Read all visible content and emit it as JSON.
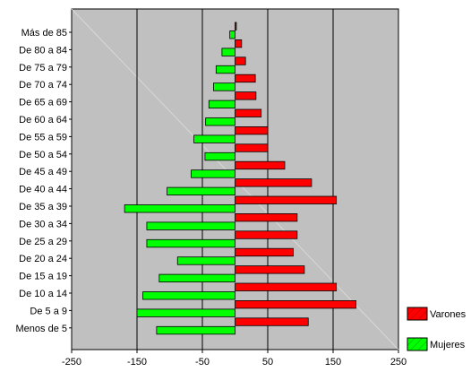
{
  "chart_data": {
    "type": "bar",
    "orientation": "horizontal",
    "categories": [
      "Más de 85",
      "De 80 a 84",
      "De 75 a 79",
      "De 70 a 74",
      "De 65 a 69",
      "De 60 a 64",
      "De 55 a 59",
      "De 50 a 54",
      "De 45 a 49",
      "De 40 a 44",
      "De 35 a 39",
      "De 30 a 34",
      "De 25 a 29",
      "De 20 a 24",
      "De 15 a 19",
      "De 10 a 14",
      "De 5 a 9",
      "Menos de 5"
    ],
    "series": [
      {
        "name": "Varones",
        "color": "#ff0000",
        "values": [
          2,
          10,
          16,
          31,
          32,
          40,
          50,
          50,
          76,
          117,
          155,
          95,
          95,
          89,
          106,
          155,
          185,
          112
        ]
      },
      {
        "name": "Mujeres",
        "color": "#00ff00",
        "values": [
          -8,
          -20,
          -29,
          -33,
          -40,
          -45,
          -63,
          -46,
          -67,
          -104,
          -169,
          -135,
          -135,
          -88,
          -116,
          -141,
          -150,
          -120
        ]
      }
    ],
    "xlim": [
      -250,
      250
    ],
    "xticks": [
      -250,
      -150,
      -50,
      50,
      150,
      250
    ],
    "xtick_labels": [
      "-250",
      "-150",
      "-50",
      "50",
      "150",
      "250"
    ],
    "grid": "vertical",
    "plot_background": "#c0c0c0",
    "legend": "bottom-right"
  }
}
